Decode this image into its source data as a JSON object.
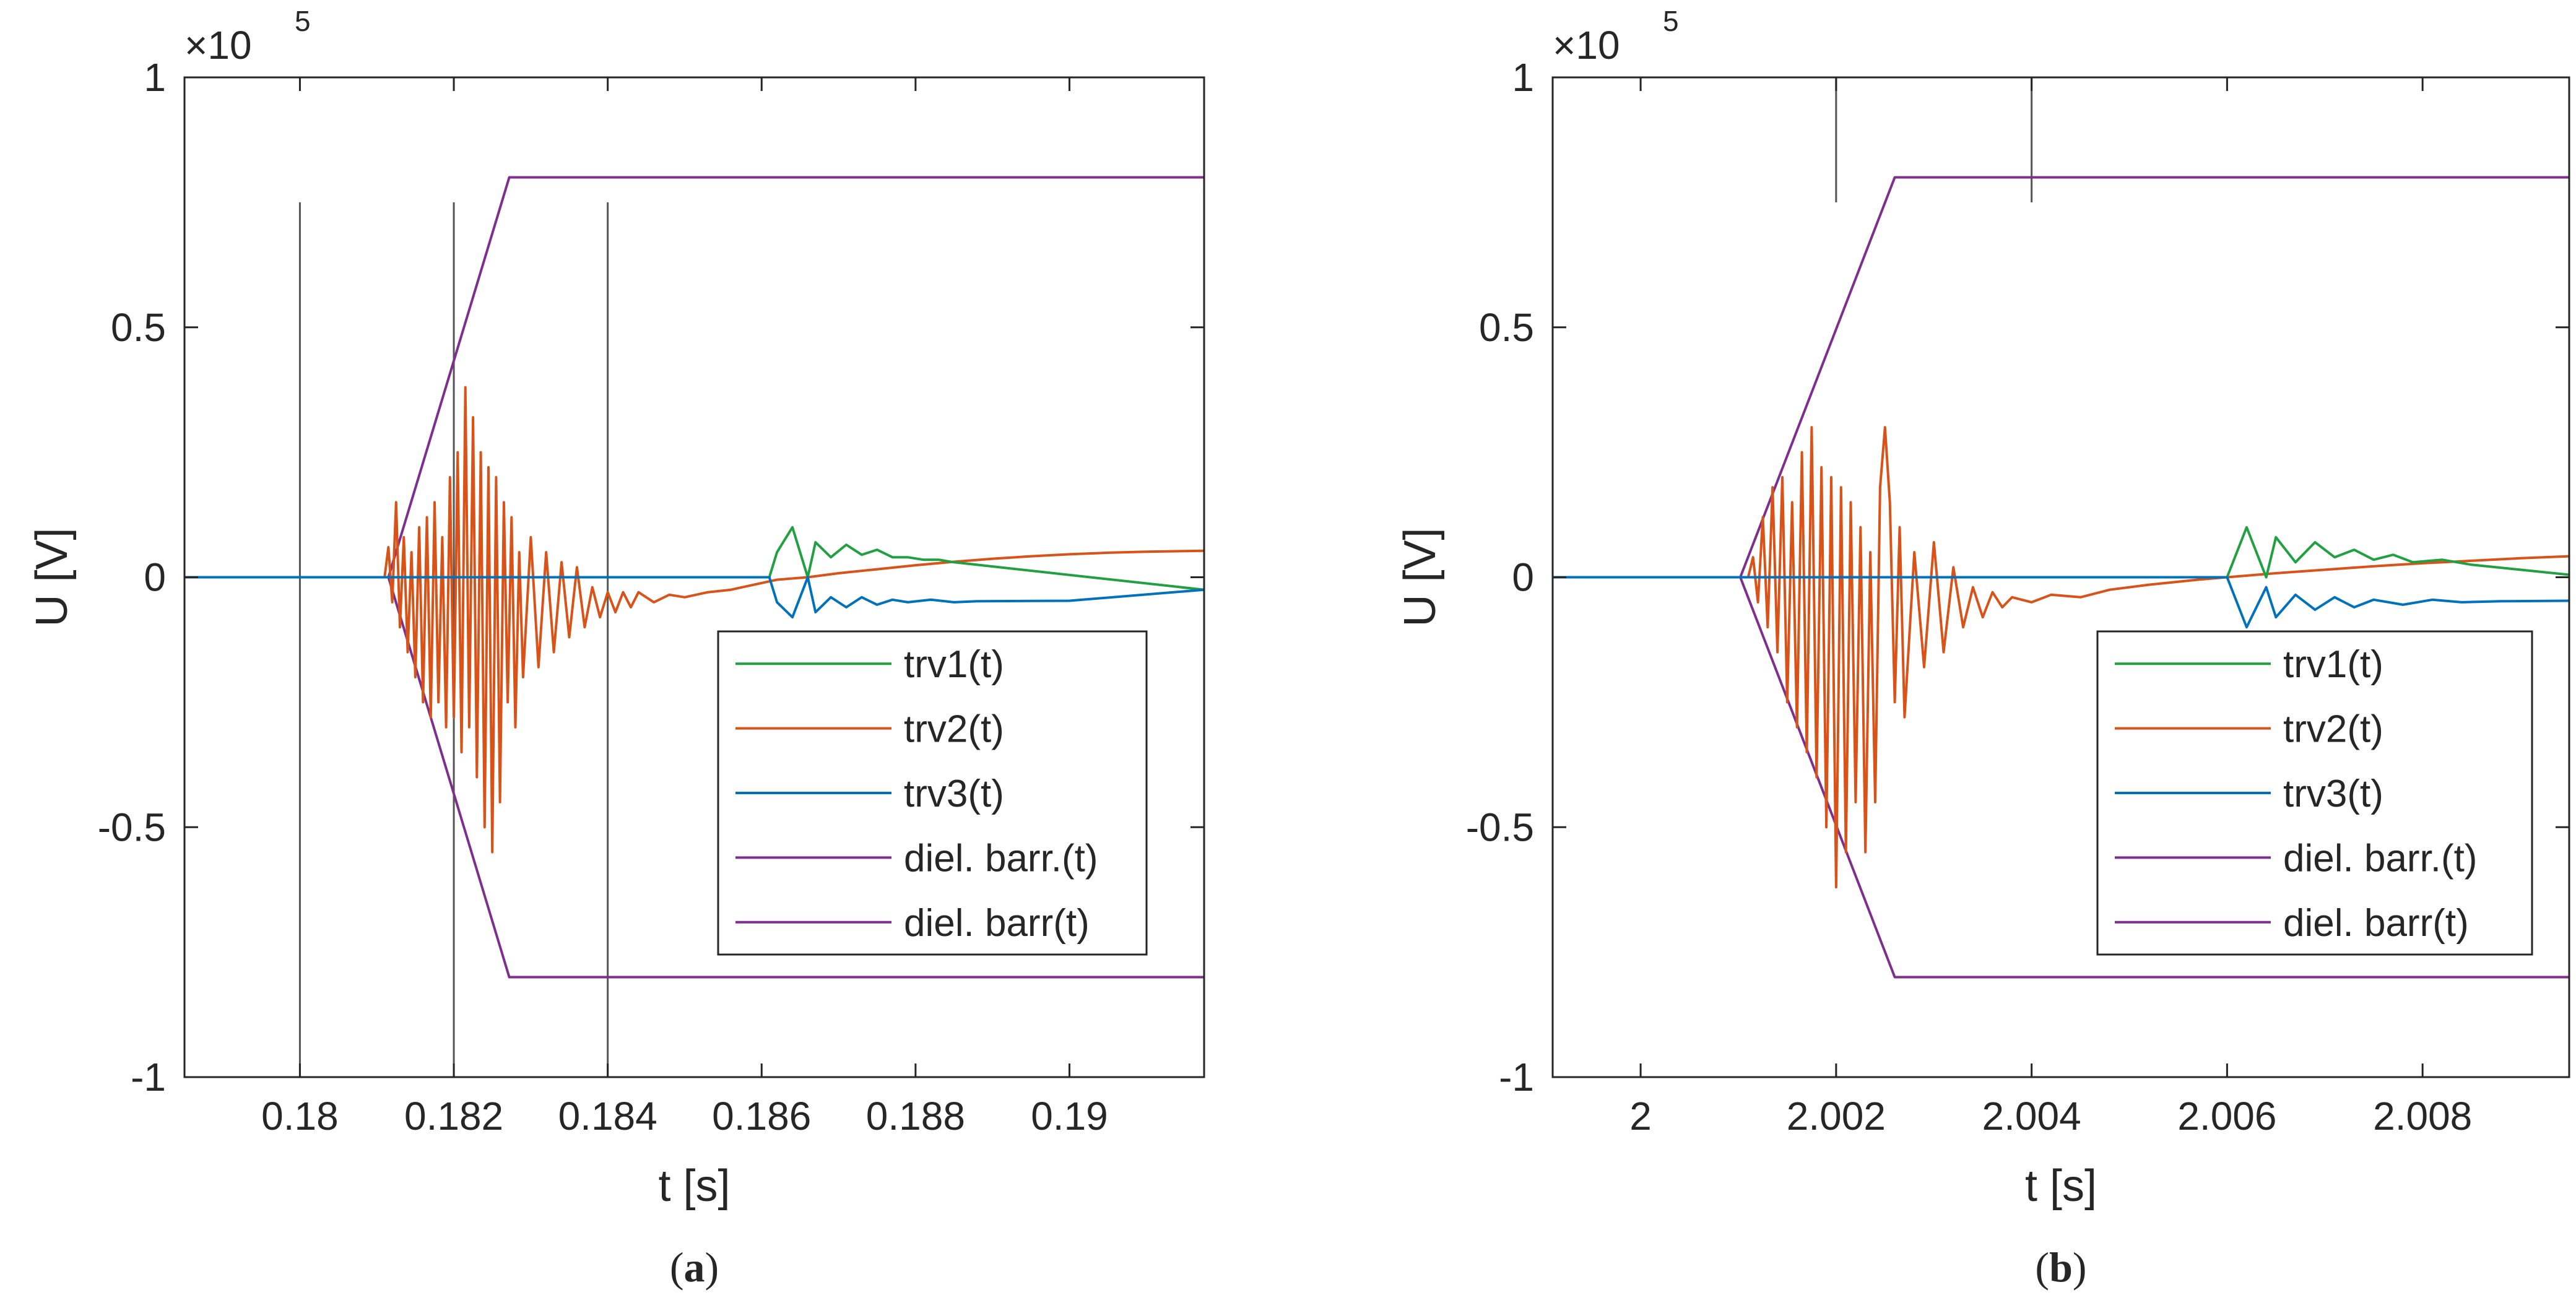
{
  "chart_data": [
    {
      "panel_label": "(a)",
      "panel_label_letter": "a",
      "type": "line",
      "xlabel": "t [s]",
      "ylabel": "U [V]",
      "xlim": [
        0.1785,
        0.19175
      ],
      "ylim": [
        -1,
        1
      ],
      "y_exponent_label": "×10",
      "y_exponent_power": "5",
      "xticks": [
        0.18,
        0.182,
        0.184,
        0.186,
        0.188,
        0.19
      ],
      "xtick_labels": [
        "0.18",
        "0.182",
        "0.184",
        "0.186",
        "0.188",
        "0.19"
      ],
      "yticks": [
        -1,
        -0.5,
        0,
        0.5,
        1
      ],
      "ytick_labels": [
        "-1",
        "-0.5",
        "0",
        "0.5",
        "1"
      ],
      "markers": [
        {
          "x": 0.18,
          "y0": -1,
          "y1": 0.75
        },
        {
          "x": 0.182,
          "y0": -1,
          "y1": 0.75
        },
        {
          "x": 0.184,
          "y0": -1,
          "y1": 0.75
        }
      ],
      "legend_location": "lower-right",
      "series": [
        {
          "name": "trv1(t)",
          "color": "#20a040",
          "points": [
            [
              0.1785,
              0
            ],
            [
              0.1861,
              0
            ],
            [
              0.1862,
              0.05
            ],
            [
              0.1864,
              0.1
            ],
            [
              0.1866,
              0.0
            ],
            [
              0.1867,
              0.07
            ],
            [
              0.1869,
              0.04
            ],
            [
              0.1871,
              0.065
            ],
            [
              0.1873,
              0.045
            ],
            [
              0.1875,
              0.055
            ],
            [
              0.1877,
              0.04
            ],
            [
              0.1879,
              0.04
            ],
            [
              0.1881,
              0.035
            ],
            [
              0.1883,
              0.035
            ],
            [
              0.1885,
              0.03
            ],
            [
              0.19175,
              -0.025
            ]
          ]
        },
        {
          "name": "trv2(t)",
          "color": "#d95319",
          "points": [
            [
              0.1785,
              0
            ],
            [
              0.1811,
              0
            ],
            [
              0.18115,
              0.06
            ],
            [
              0.1812,
              -0.05
            ],
            [
              0.18125,
              0.15
            ],
            [
              0.1813,
              -0.1
            ],
            [
              0.18135,
              0.08
            ],
            [
              0.1814,
              -0.15
            ],
            [
              0.18145,
              0.05
            ],
            [
              0.1815,
              -0.2
            ],
            [
              0.18155,
              0.1
            ],
            [
              0.1816,
              -0.25
            ],
            [
              0.18165,
              0.12
            ],
            [
              0.1817,
              -0.28
            ],
            [
              0.18175,
              0.15
            ],
            [
              0.1818,
              -0.25
            ],
            [
              0.18185,
              0.08
            ],
            [
              0.1819,
              -0.3
            ],
            [
              0.18195,
              0.2
            ],
            [
              0.182,
              -0.28
            ],
            [
              0.18205,
              0.25
            ],
            [
              0.1821,
              -0.35
            ],
            [
              0.18215,
              0.38
            ],
            [
              0.1822,
              -0.3
            ],
            [
              0.18225,
              0.32
            ],
            [
              0.1823,
              -0.4
            ],
            [
              0.18235,
              0.25
            ],
            [
              0.1824,
              -0.5
            ],
            [
              0.18245,
              0.22
            ],
            [
              0.1825,
              -0.55
            ],
            [
              0.18255,
              0.2
            ],
            [
              0.1826,
              -0.45
            ],
            [
              0.18265,
              0.15
            ],
            [
              0.1827,
              -0.25
            ],
            [
              0.18275,
              0.12
            ],
            [
              0.1828,
              -0.3
            ],
            [
              0.18285,
              0.05
            ],
            [
              0.1829,
              -0.2
            ],
            [
              0.183,
              0.08
            ],
            [
              0.1831,
              -0.18
            ],
            [
              0.1832,
              0.05
            ],
            [
              0.1833,
              -0.15
            ],
            [
              0.1834,
              0.03
            ],
            [
              0.1835,
              -0.12
            ],
            [
              0.1836,
              0.02
            ],
            [
              0.1837,
              -0.1
            ],
            [
              0.1838,
              -0.02
            ],
            [
              0.1839,
              -0.08
            ],
            [
              0.184,
              -0.03
            ],
            [
              0.1841,
              -0.07
            ],
            [
              0.1842,
              -0.03
            ],
            [
              0.1843,
              -0.06
            ],
            [
              0.1844,
              -0.03
            ],
            [
              0.1846,
              -0.05
            ],
            [
              0.1848,
              -0.035
            ],
            [
              0.185,
              -0.04
            ],
            [
              0.1853,
              -0.03
            ],
            [
              0.1856,
              -0.025
            ],
            [
              0.1859,
              -0.015
            ],
            [
              0.1862,
              -0.005
            ],
            [
              0.1866,
              0.0
            ],
            [
              0.187,
              0.008
            ],
            [
              0.1875,
              0.016
            ],
            [
              0.188,
              0.024
            ],
            [
              0.1885,
              0.031
            ],
            [
              0.189,
              0.037
            ],
            [
              0.1895,
              0.042
            ],
            [
              0.19,
              0.046
            ],
            [
              0.1905,
              0.049
            ],
            [
              0.191,
              0.051
            ],
            [
              0.19175,
              0.053
            ]
          ]
        },
        {
          "name": "trv3(t)",
          "color": "#0072bd",
          "points": [
            [
              0.1785,
              0
            ],
            [
              0.1861,
              0
            ],
            [
              0.1862,
              -0.05
            ],
            [
              0.1864,
              -0.08
            ],
            [
              0.1866,
              0.0
            ],
            [
              0.1867,
              -0.07
            ],
            [
              0.1869,
              -0.04
            ],
            [
              0.1871,
              -0.06
            ],
            [
              0.1873,
              -0.04
            ],
            [
              0.1875,
              -0.055
            ],
            [
              0.1877,
              -0.045
            ],
            [
              0.1879,
              -0.05
            ],
            [
              0.1882,
              -0.045
            ],
            [
              0.1885,
              -0.05
            ],
            [
              0.1888,
              -0.048
            ],
            [
              0.19,
              -0.047
            ],
            [
              0.19175,
              -0.025
            ]
          ]
        },
        {
          "name": "diel. barr.(t)",
          "color": "#7e2f8e",
          "points": [
            [
              0.1785,
              0
            ],
            [
              0.18115,
              0
            ],
            [
              0.18272,
              0.8
            ],
            [
              0.19175,
              0.8
            ]
          ]
        },
        {
          "name": "diel. barr(t)",
          "color": "#7e2f8e",
          "points": [
            [
              0.1785,
              0
            ],
            [
              0.18115,
              0
            ],
            [
              0.18272,
              -0.8
            ],
            [
              0.19175,
              -0.8
            ]
          ]
        }
      ]
    },
    {
      "panel_label": "(b)",
      "panel_label_letter": "b",
      "type": "line",
      "xlabel": "t [s]",
      "ylabel": "U [V]",
      "xlim": [
        1.9991,
        2.0095
      ],
      "ylim": [
        -1,
        1
      ],
      "y_exponent_label": "×10",
      "y_exponent_power": "5",
      "xticks": [
        2.0,
        2.002,
        2.004,
        2.006,
        2.008
      ],
      "xtick_labels": [
        "2",
        "2.002",
        "2.004",
        "2.006",
        "2.008"
      ],
      "yticks": [
        -1,
        -0.5,
        0,
        0.5,
        1
      ],
      "ytick_labels": [
        "-1",
        "-0.5",
        "0",
        "0.5",
        "1"
      ],
      "markers": [
        {
          "x": 2.002,
          "y0": 0.75,
          "y1": 1
        },
        {
          "x": 2.004,
          "y0": 0.75,
          "y1": 1
        }
      ],
      "legend_location": "lower-right",
      "series": [
        {
          "name": "trv1(t)",
          "color": "#20a040",
          "points": [
            [
              1.9991,
              0
            ],
            [
              2.006,
              0
            ],
            [
              2.0061,
              0.05
            ],
            [
              2.0062,
              0.1
            ],
            [
              2.0064,
              0.0
            ],
            [
              2.0065,
              0.08
            ],
            [
              2.0067,
              0.03
            ],
            [
              2.0069,
              0.07
            ],
            [
              2.0071,
              0.04
            ],
            [
              2.0073,
              0.055
            ],
            [
              2.0075,
              0.035
            ],
            [
              2.0077,
              0.045
            ],
            [
              2.0079,
              0.03
            ],
            [
              2.0082,
              0.035
            ],
            [
              2.0085,
              0.025
            ],
            [
              2.009,
              0.015
            ],
            [
              2.0095,
              0.005
            ]
          ]
        },
        {
          "name": "trv2(t)",
          "color": "#d95319",
          "points": [
            [
              1.9991,
              0
            ],
            [
              2.0011,
              0
            ],
            [
              2.00115,
              0.04
            ],
            [
              2.0012,
              -0.05
            ],
            [
              2.00125,
              0.12
            ],
            [
              2.0013,
              -0.1
            ],
            [
              2.00135,
              0.18
            ],
            [
              2.0014,
              -0.15
            ],
            [
              2.00145,
              0.2
            ],
            [
              2.0015,
              -0.25
            ],
            [
              2.00155,
              0.15
            ],
            [
              2.0016,
              -0.3
            ],
            [
              2.00165,
              0.25
            ],
            [
              2.0017,
              -0.35
            ],
            [
              2.00175,
              0.3
            ],
            [
              2.0018,
              -0.4
            ],
            [
              2.00185,
              0.22
            ],
            [
              2.0019,
              -0.5
            ],
            [
              2.00195,
              0.2
            ],
            [
              2.002,
              -0.62
            ],
            [
              2.00205,
              0.18
            ],
            [
              2.0021,
              -0.55
            ],
            [
              2.00215,
              0.15
            ],
            [
              2.0022,
              -0.45
            ],
            [
              2.00225,
              0.1
            ],
            [
              2.0023,
              -0.55
            ],
            [
              2.00235,
              0.05
            ],
            [
              2.0024,
              -0.45
            ],
            [
              2.00245,
              0.18
            ],
            [
              2.0025,
              0.3
            ],
            [
              2.00255,
              0.15
            ],
            [
              2.0026,
              -0.25
            ],
            [
              2.00265,
              0.1
            ],
            [
              2.0027,
              -0.28
            ],
            [
              2.0028,
              0.05
            ],
            [
              2.0029,
              -0.18
            ],
            [
              2.003,
              0.07
            ],
            [
              2.0031,
              -0.15
            ],
            [
              2.0032,
              0.02
            ],
            [
              2.0033,
              -0.1
            ],
            [
              2.0034,
              -0.02
            ],
            [
              2.0035,
              -0.08
            ],
            [
              2.0036,
              -0.03
            ],
            [
              2.0037,
              -0.06
            ],
            [
              2.0038,
              -0.04
            ],
            [
              2.004,
              -0.05
            ],
            [
              2.0042,
              -0.035
            ],
            [
              2.0045,
              -0.04
            ],
            [
              2.0048,
              -0.025
            ],
            [
              2.0052,
              -0.015
            ],
            [
              2.0057,
              -0.005
            ],
            [
              2.006,
              0.0
            ],
            [
              2.0065,
              0.008
            ],
            [
              2.007,
              0.015
            ],
            [
              2.0075,
              0.022
            ],
            [
              2.008,
              0.028
            ],
            [
              2.0085,
              0.033
            ],
            [
              2.009,
              0.038
            ],
            [
              2.0095,
              0.042
            ]
          ]
        },
        {
          "name": "trv3(t)",
          "color": "#0072bd",
          "points": [
            [
              1.9991,
              0
            ],
            [
              2.006,
              0
            ],
            [
              2.0061,
              -0.05
            ],
            [
              2.0062,
              -0.1
            ],
            [
              2.0064,
              -0.02
            ],
            [
              2.0065,
              -0.08
            ],
            [
              2.0067,
              -0.035
            ],
            [
              2.0069,
              -0.065
            ],
            [
              2.0071,
              -0.04
            ],
            [
              2.0073,
              -0.06
            ],
            [
              2.0075,
              -0.045
            ],
            [
              2.0078,
              -0.055
            ],
            [
              2.0081,
              -0.045
            ],
            [
              2.0084,
              -0.05
            ],
            [
              2.0088,
              -0.048
            ],
            [
              2.0095,
              -0.047
            ]
          ]
        },
        {
          "name": "diel. barr.(t)",
          "color": "#7e2f8e",
          "points": [
            [
              1.9991,
              0
            ],
            [
              2.00102,
              0
            ],
            [
              2.0026,
              0.8
            ],
            [
              2.0095,
              0.8
            ]
          ]
        },
        {
          "name": "diel. barr(t)",
          "color": "#7e2f8e",
          "points": [
            [
              1.9991,
              0
            ],
            [
              2.00102,
              0
            ],
            [
              2.0026,
              -0.8
            ],
            [
              2.0095,
              -0.8
            ]
          ]
        }
      ]
    }
  ]
}
